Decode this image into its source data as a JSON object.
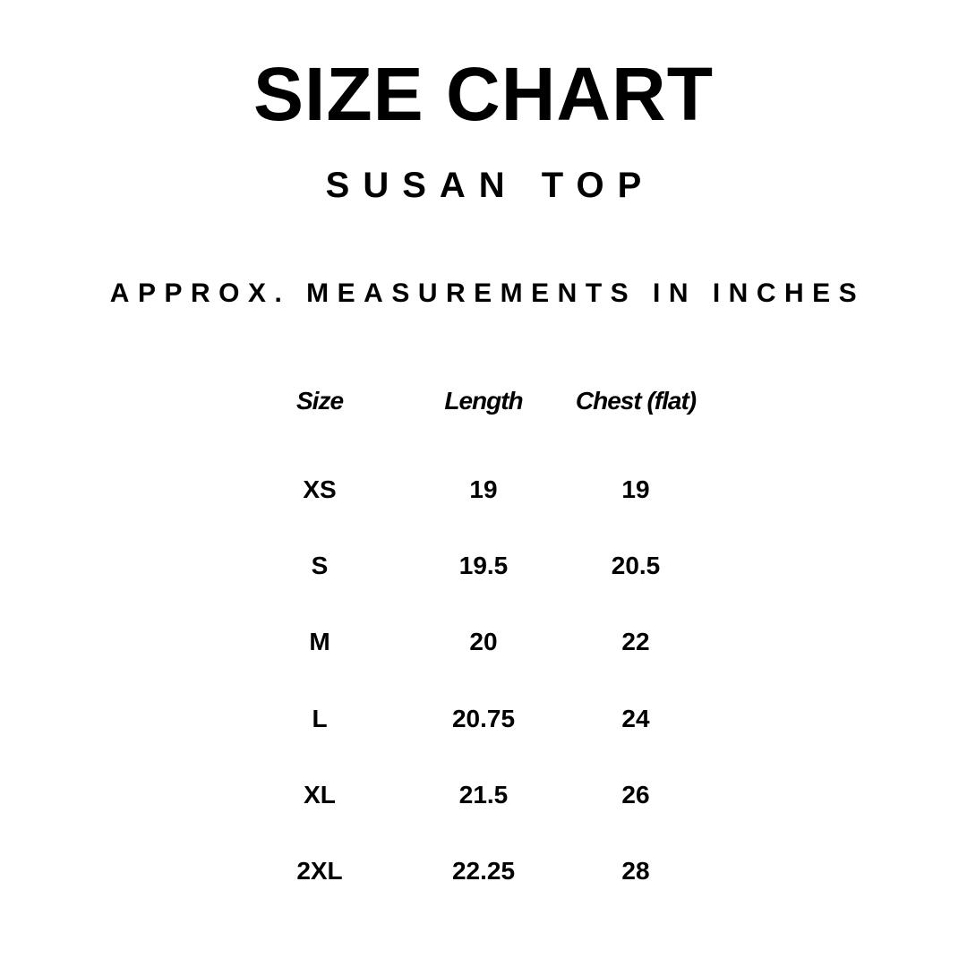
{
  "title": "SIZE CHART",
  "subtitle": "SUSAN TOP",
  "note": "APPROX. MEASUREMENTS IN INCHES",
  "table": {
    "headers": [
      "Size",
      "Length",
      "Chest (flat)"
    ],
    "rows": [
      [
        "XS",
        "19",
        "19"
      ],
      [
        "S",
        "19.5",
        "20.5"
      ],
      [
        "M",
        "20",
        "22"
      ],
      [
        "L",
        "20.75",
        "24"
      ],
      [
        "XL",
        "21.5",
        "26"
      ],
      [
        "2XL",
        "22.25",
        "28"
      ]
    ]
  }
}
